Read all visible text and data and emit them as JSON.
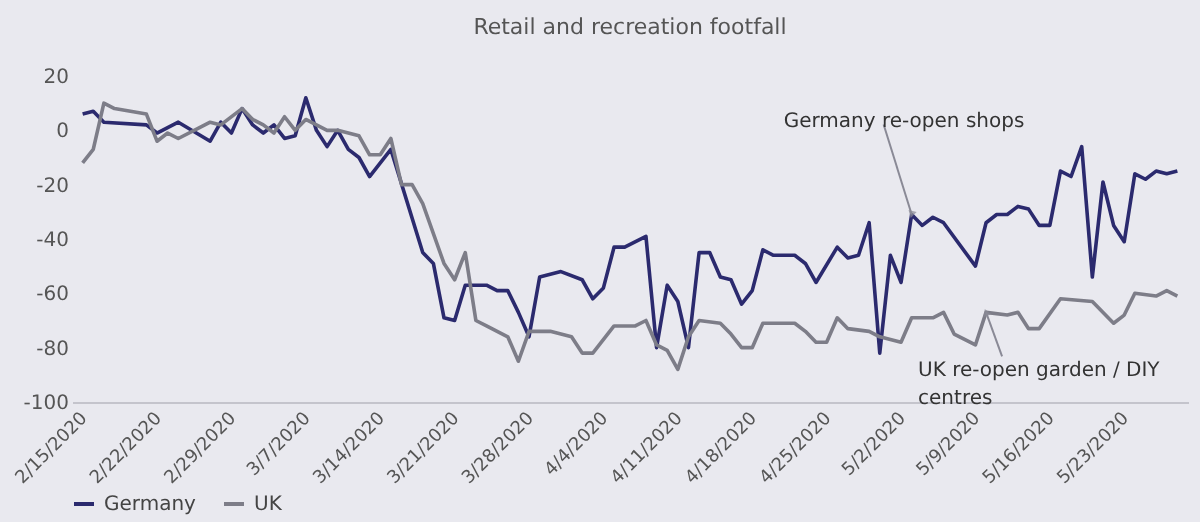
{
  "chart_data": {
    "type": "line",
    "title": "Retail and recreation footfall",
    "x": [
      "2020-02-15",
      "2020-02-16",
      "2020-02-17",
      "2020-02-21",
      "2020-02-22",
      "2020-02-24",
      "2020-02-27",
      "2020-02-28",
      "2020-02-29",
      "2020-03-01",
      "2020-03-02",
      "2020-03-03",
      "2020-03-04",
      "2020-03-05",
      "2020-03-06",
      "2020-03-07",
      "2020-03-08",
      "2020-03-09",
      "2020-03-10",
      "2020-03-11",
      "2020-03-12",
      "2020-03-13",
      "2020-03-15",
      "2020-03-18",
      "2020-03-19",
      "2020-03-20",
      "2020-03-21",
      "2020-03-22",
      "2020-03-24",
      "2020-03-25",
      "2020-03-26",
      "2020-03-27",
      "2020-03-28",
      "2020-03-29",
      "2020-03-31",
      "2020-04-02",
      "2020-04-03",
      "2020-04-04",
      "2020-04-05",
      "2020-04-06",
      "2020-04-08",
      "2020-04-09",
      "2020-04-10",
      "2020-04-11",
      "2020-04-12",
      "2020-04-13",
      "2020-04-14",
      "2020-04-15",
      "2020-04-16",
      "2020-04-17",
      "2020-04-18",
      "2020-04-19",
      "2020-04-20",
      "2020-04-21",
      "2020-04-22",
      "2020-04-23",
      "2020-04-24",
      "2020-04-26",
      "2020-04-27",
      "2020-04-28",
      "2020-04-29",
      "2020-04-30",
      "2020-05-01",
      "2020-05-02",
      "2020-05-03",
      "2020-05-04",
      "2020-05-05",
      "2020-05-06",
      "2020-05-09",
      "2020-05-10",
      "2020-05-11",
      "2020-05-12",
      "2020-05-13",
      "2020-05-14",
      "2020-05-15",
      "2020-05-16",
      "2020-05-17",
      "2020-05-18",
      "2020-05-19",
      "2020-05-20",
      "2020-05-21",
      "2020-05-22",
      "2020-05-23",
      "2020-05-24",
      "2020-05-25",
      "2020-05-26",
      "2020-05-27",
      "2020-05-28"
    ],
    "series": [
      {
        "name": "Germany",
        "color": "#2b2a6e",
        "values": [
          6,
          7,
          3,
          2,
          -1,
          3,
          -4,
          3,
          -1,
          8,
          2,
          -1,
          2,
          -3,
          -2,
          12,
          0,
          -6,
          0,
          -7,
          -10,
          -17,
          -7,
          -45,
          -49,
          -69,
          -70,
          -57,
          -57,
          -59,
          -59,
          -67,
          -76,
          -54,
          -52,
          -55,
          -62,
          -58,
          -43,
          -43,
          -39,
          -80,
          -57,
          -63,
          -80,
          -45,
          -45,
          -54,
          -55,
          -64,
          -59,
          -44,
          -46,
          -46,
          -46,
          -49,
          -56,
          -43,
          -47,
          -46,
          -34,
          -82,
          -46,
          -56,
          -31,
          -35,
          -32,
          -34,
          -50,
          -34,
          -31,
          -31,
          -28,
          -29,
          -35,
          -35,
          -15,
          -17,
          -6,
          -54,
          -19,
          -35,
          -41,
          -16,
          -18,
          -15,
          -16,
          -15
        ]
      },
      {
        "name": "UK",
        "color": "#7d7d88",
        "x": [
          "2020-02-15",
          "2020-02-16",
          "2020-02-17",
          "2020-02-18",
          "2020-02-21",
          "2020-02-22",
          "2020-02-23",
          "2020-02-24",
          "2020-02-26",
          "2020-02-27",
          "2020-02-28",
          "2020-03-01",
          "2020-03-02",
          "2020-03-03",
          "2020-03-04",
          "2020-03-05",
          "2020-03-06",
          "2020-03-07",
          "2020-03-09",
          "2020-03-10",
          "2020-03-12",
          "2020-03-13",
          "2020-03-14",
          "2020-03-15",
          "2020-03-16",
          "2020-03-17",
          "2020-03-18",
          "2020-03-20",
          "2020-03-21",
          "2020-03-22",
          "2020-03-23",
          "2020-03-24",
          "2020-03-26",
          "2020-03-27",
          "2020-03-28",
          "2020-03-30",
          "2020-04-01",
          "2020-04-02",
          "2020-04-03",
          "2020-04-05",
          "2020-04-07",
          "2020-04-08",
          "2020-04-09",
          "2020-04-10",
          "2020-04-11",
          "2020-04-12",
          "2020-04-13",
          "2020-04-15",
          "2020-04-16",
          "2020-04-17",
          "2020-04-18",
          "2020-04-19",
          "2020-04-21",
          "2020-04-22",
          "2020-04-23",
          "2020-04-24",
          "2020-04-25",
          "2020-04-26",
          "2020-04-27",
          "2020-04-29",
          "2020-04-30",
          "2020-05-01",
          "2020-05-02",
          "2020-05-03",
          "2020-05-05",
          "2020-05-06",
          "2020-05-07",
          "2020-05-09",
          "2020-05-10",
          "2020-05-12",
          "2020-05-13",
          "2020-05-14",
          "2020-05-15",
          "2020-05-17",
          "2020-05-20",
          "2020-05-22",
          "2020-05-23",
          "2020-05-24",
          "2020-05-26",
          "2020-05-27",
          "2020-05-28"
        ],
        "values": [
          -12,
          -7,
          10,
          8,
          6,
          -4,
          -1,
          -3,
          1,
          3,
          2,
          8,
          4,
          2,
          -1,
          5,
          0,
          4,
          0,
          0,
          -2,
          -9,
          -9,
          -3,
          -20,
          -20,
          -27,
          -49,
          -55,
          -45,
          -70,
          -72,
          -76,
          -85,
          -74,
          -74,
          -76,
          -82,
          -82,
          -72,
          -72,
          -70,
          -79,
          -81,
          -88,
          -76,
          -70,
          -71,
          -75,
          -80,
          -80,
          -71,
          -71,
          -71,
          -74,
          -78,
          -78,
          -69,
          -73,
          -74,
          -76,
          -77,
          -78,
          -69,
          -69,
          -67,
          -75,
          -79,
          -67,
          -68,
          -67,
          -73,
          -73,
          -62,
          -63,
          -71,
          -68,
          -60,
          -61,
          -59,
          -61
        ]
      }
    ],
    "xlim": [
      "2020-02-14",
      "2020-05-29"
    ],
    "xticks": [
      {
        "value": "2020-02-15",
        "label": "2/15/2020"
      },
      {
        "value": "2020-02-22",
        "label": "2/22/2020"
      },
      {
        "value": "2020-02-29",
        "label": "2/29/2020"
      },
      {
        "value": "2020-03-07",
        "label": "3/7/2020"
      },
      {
        "value": "2020-03-14",
        "label": "3/14/2020"
      },
      {
        "value": "2020-03-21",
        "label": "3/21/2020"
      },
      {
        "value": "2020-03-28",
        "label": "3/28/2020"
      },
      {
        "value": "2020-04-04",
        "label": "4/4/2020"
      },
      {
        "value": "2020-04-11",
        "label": "4/11/2020"
      },
      {
        "value": "2020-04-18",
        "label": "4/18/2020"
      },
      {
        "value": "2020-04-25",
        "label": "4/25/2020"
      },
      {
        "value": "2020-05-02",
        "label": "5/2/2020"
      },
      {
        "value": "2020-05-09",
        "label": "5/9/2020"
      },
      {
        "value": "2020-05-16",
        "label": "5/16/2020"
      },
      {
        "value": "2020-05-23",
        "label": "5/23/2020"
      }
    ],
    "ylim": [
      -100,
      20
    ],
    "yticks": [
      -100,
      -80,
      -60,
      -40,
      -20,
      0,
      20
    ],
    "annotations": [
      {
        "text": "Germany re-open shops",
        "x": "2020-05-03",
        "y": -31
      },
      {
        "text": "UK re-open garden / DIY centres",
        "x": "2020-05-10",
        "y": -67
      }
    ],
    "legend": "bottom",
    "line_style": "solid",
    "marker": "none"
  }
}
